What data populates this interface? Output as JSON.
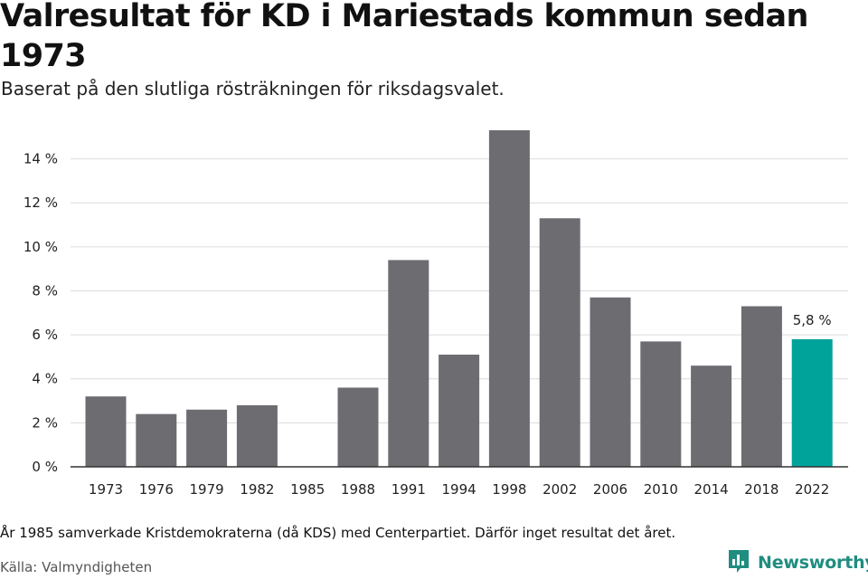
{
  "title": "Valresultat för KD i Mariestads kommun sedan 1973",
  "subtitle": "Baserat på den slutliga rösträkningen för riksdagsvalet.",
  "note": "År 1985 samverkade Kristdemokraterna (då KDS) med Centerpartiet. Därför inget resultat det året.",
  "source": "Källa: Valmyndigheten",
  "brand": {
    "name": "Newsworthy",
    "icon": "newsworthy-logo-icon"
  },
  "colors": {
    "bar": "#6d6c71",
    "highlight": "#00a39a",
    "grid": "#dcdcdc",
    "axis": "#333333"
  },
  "chart_data": {
    "type": "bar",
    "title": "Valresultat för KD i Mariestads kommun sedan 1973",
    "xlabel": "",
    "ylabel": "",
    "categories": [
      "1973",
      "1976",
      "1979",
      "1982",
      "1985",
      "1988",
      "1991",
      "1994",
      "1998",
      "2002",
      "2006",
      "2010",
      "2014",
      "2018",
      "2022"
    ],
    "values": [
      3.2,
      2.4,
      2.6,
      2.8,
      null,
      3.6,
      9.4,
      5.1,
      15.3,
      11.3,
      7.7,
      5.7,
      4.6,
      7.3,
      5.8
    ],
    "highlight_index": 14,
    "data_labels": [
      {
        "index": 14,
        "text": "5,8 %"
      }
    ],
    "ylim": [
      0,
      15.3
    ],
    "yticks": [
      0,
      2,
      4,
      6,
      8,
      10,
      12,
      14
    ],
    "ytick_labels": [
      "0 %",
      "2 %",
      "4 %",
      "6 %",
      "8 %",
      "10 %",
      "12 %",
      "14 %"
    ],
    "grid": true
  }
}
